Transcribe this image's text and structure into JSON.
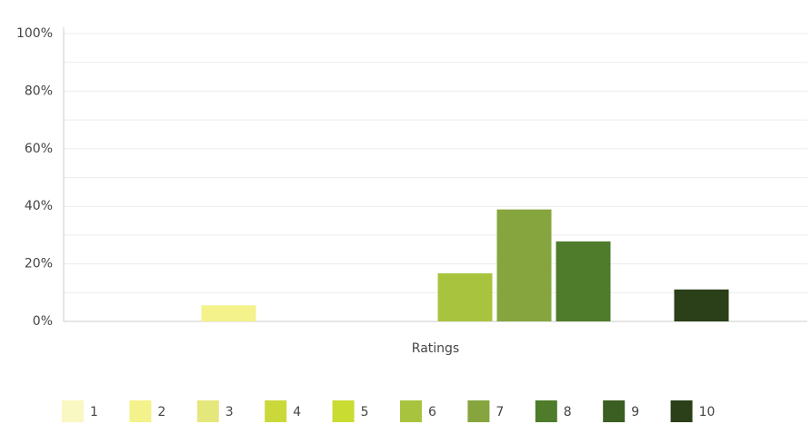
{
  "chart_data": {
    "type": "bar",
    "categories": [
      "Ratings"
    ],
    "series": [
      {
        "name": "1",
        "color": "#f9f7c2",
        "values": [
          0
        ]
      },
      {
        "name": "2",
        "color": "#f4f28a",
        "values": [
          5.6
        ]
      },
      {
        "name": "3",
        "color": "#e4e87c",
        "values": [
          0
        ]
      },
      {
        "name": "4",
        "color": "#cbd83a",
        "values": [
          0
        ]
      },
      {
        "name": "5",
        "color": "#c9dc32",
        "values": [
          0
        ]
      },
      {
        "name": "6",
        "color": "#a8c43e",
        "values": [
          16.7
        ]
      },
      {
        "name": "7",
        "color": "#86a53e",
        "values": [
          38.9
        ]
      },
      {
        "name": "8",
        "color": "#4e7c2a",
        "values": [
          27.8
        ]
      },
      {
        "name": "9",
        "color": "#3b5e22",
        "values": [
          0
        ]
      },
      {
        "name": "10",
        "color": "#2b3f19",
        "values": [
          11.1
        ]
      }
    ],
    "ylim": [
      0,
      100
    ],
    "yticks": [
      {
        "value": 0,
        "label": "0%"
      },
      {
        "value": 20,
        "label": "20%"
      },
      {
        "value": 40,
        "label": "40%"
      },
      {
        "value": 60,
        "label": "60%"
      },
      {
        "value": 80,
        "label": "80%"
      },
      {
        "value": 100,
        "label": "100%"
      }
    ],
    "minor_yticks": [
      10,
      30,
      50,
      70,
      90
    ],
    "grid": true,
    "legend": "bottom"
  }
}
